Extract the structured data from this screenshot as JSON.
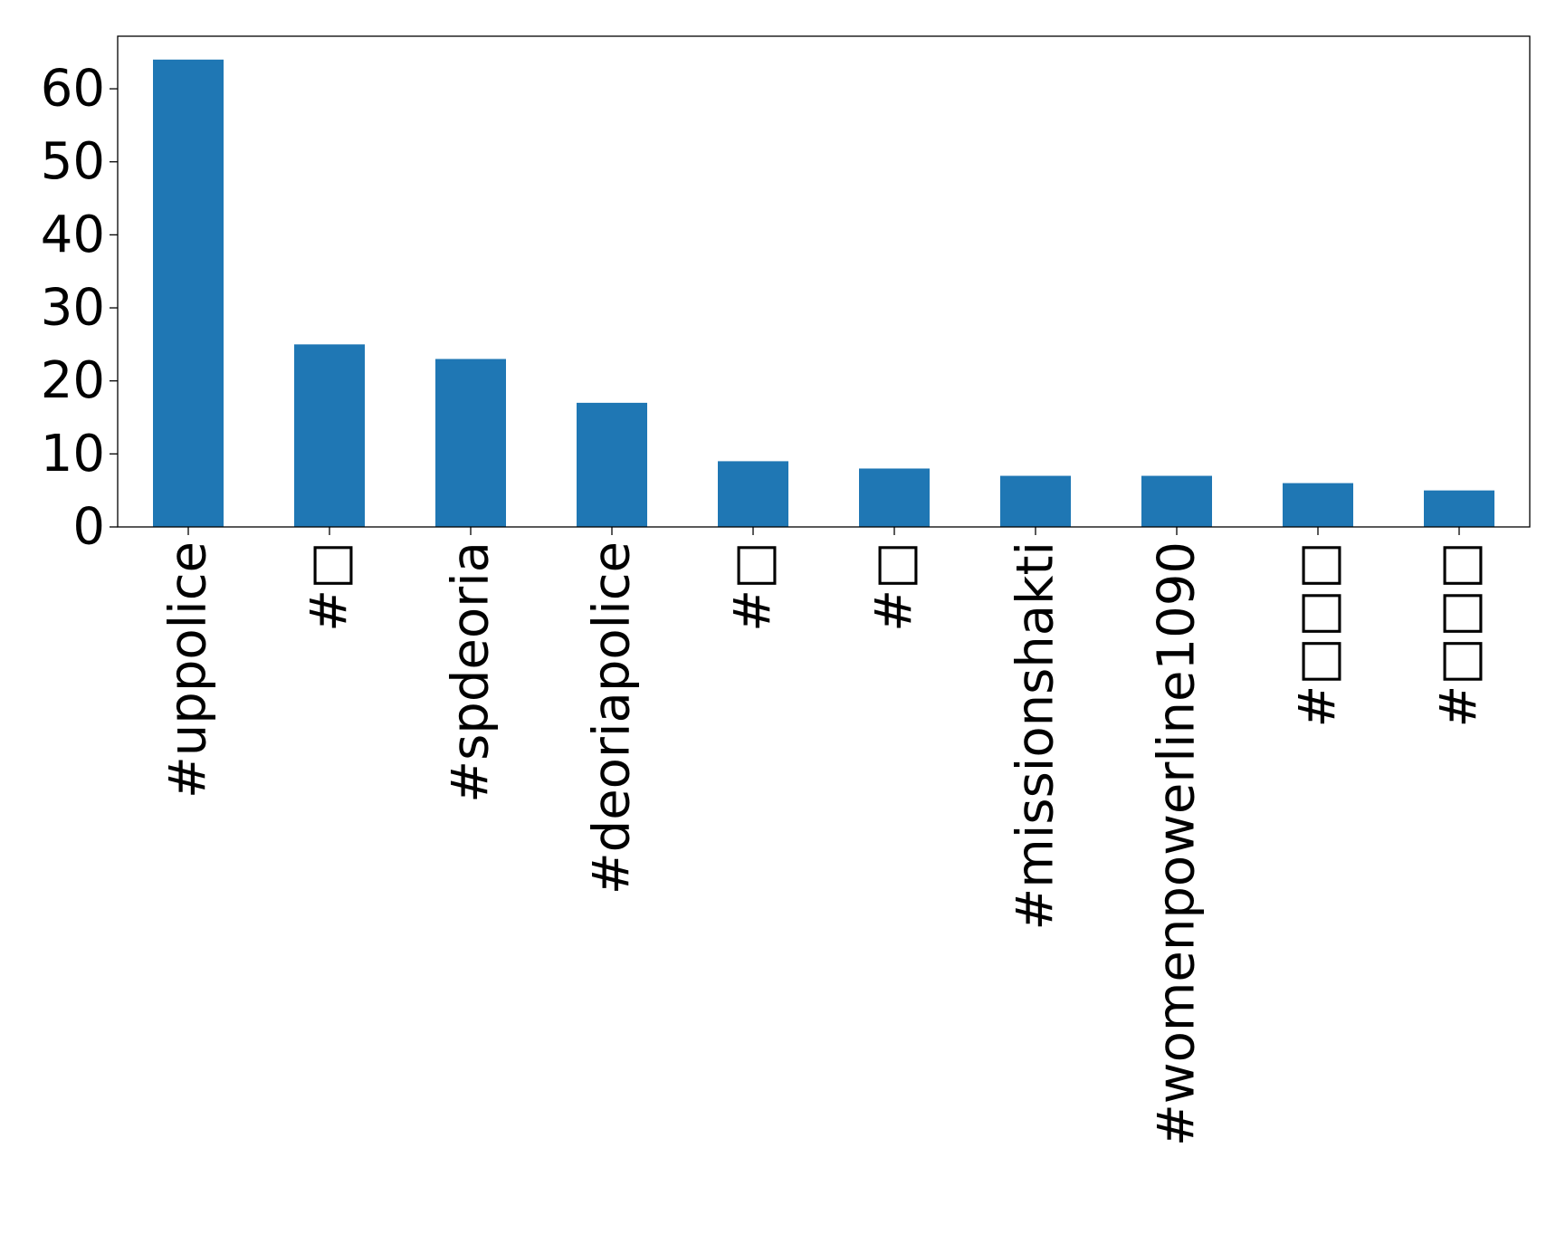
{
  "chart_data": {
    "type": "bar",
    "title": "",
    "xlabel": "",
    "ylabel": "",
    "categories": [
      "#uppolice",
      "#□",
      "#spdeoria",
      "#deoriapolice",
      "#□",
      "#□",
      "#missionshakti",
      "#womenpowerline1090",
      "#□□□",
      "#□□□"
    ],
    "values": [
      64,
      25,
      23,
      17,
      9,
      8,
      7,
      7,
      6,
      5
    ],
    "ylim": [
      0,
      67.2
    ],
    "yticks": [
      0,
      10,
      20,
      30,
      40,
      50,
      60
    ],
    "ytick_labels": [
      "0",
      "10",
      "20",
      "30",
      "40",
      "50",
      "60"
    ],
    "bar_color": "#1f77b4",
    "grid": false,
    "legend": "none"
  }
}
